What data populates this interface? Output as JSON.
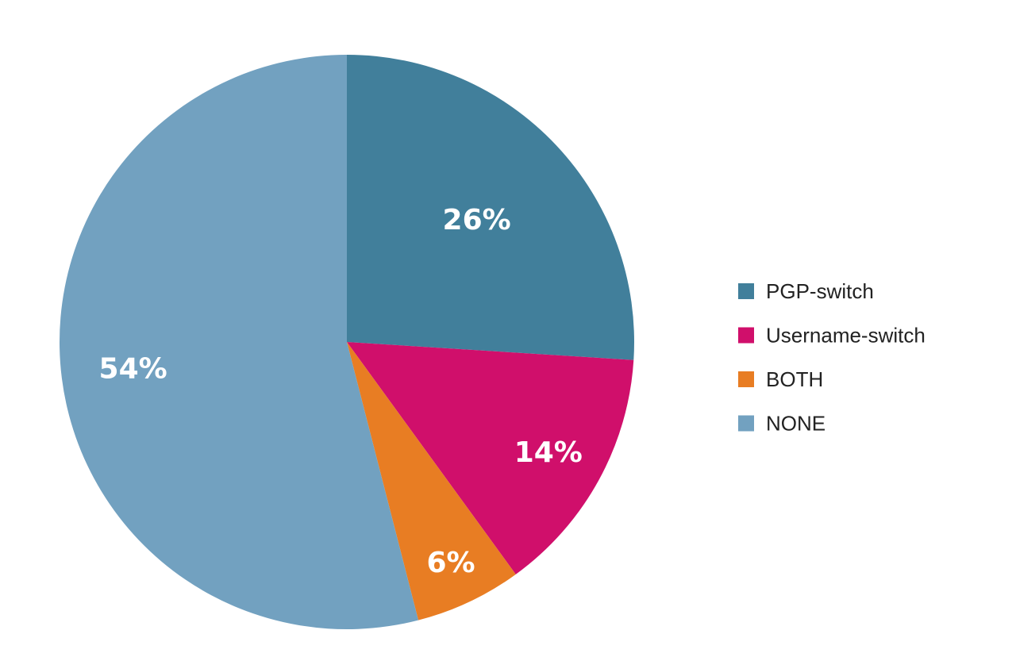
{
  "chart_data": {
    "type": "pie",
    "categories": [
      "PGP-switch",
      "Username-switch",
      "BOTH",
      "NONE"
    ],
    "values": [
      26,
      14,
      6,
      54
    ],
    "value_labels": [
      "26%",
      "14%",
      "6%",
      "54%"
    ],
    "colors": [
      "#417f9b",
      "#d00f6b",
      "#e87d23",
      "#72a1c0"
    ],
    "start_angle_deg": 0,
    "direction": "clockwise",
    "legend_position": "right"
  }
}
